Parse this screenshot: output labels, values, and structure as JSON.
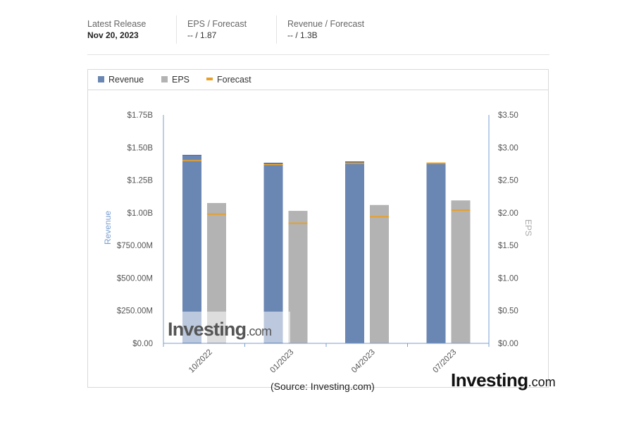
{
  "summary": {
    "latest_release_label": "Latest Release",
    "latest_release_value": "Nov 20, 2023",
    "eps_label": "EPS / Forecast",
    "eps_value": "-- / 1.87",
    "revenue_label": "Revenue / Forecast",
    "revenue_value": "-- / 1.3B"
  },
  "legend": {
    "revenue": "Revenue",
    "eps": "EPS",
    "forecast": "Forecast"
  },
  "colors": {
    "revenue": "#6a86b3",
    "eps": "#b3b3b3",
    "forecast": "#e8a02a",
    "axis": "#7a9fd0"
  },
  "chart_data": {
    "type": "bar",
    "categories": [
      "10/2022",
      "01/2023",
      "04/2023",
      "07/2023"
    ],
    "series": [
      {
        "name": "Revenue",
        "axis": "left",
        "unit": "B",
        "values": [
          1.44,
          1.38,
          1.39,
          1.38
        ]
      },
      {
        "name": "EPS",
        "axis": "right",
        "unit": "$",
        "values": [
          2.15,
          2.03,
          2.12,
          2.19
        ]
      },
      {
        "name": "Forecast",
        "axis": "both",
        "revenue_values": [
          1.4,
          1.37,
          1.38,
          1.38
        ],
        "eps_values": [
          1.98,
          1.84,
          1.94,
          2.04
        ]
      }
    ],
    "ylabel_left": "Revenue",
    "ylabel_right": "EPS",
    "ylim_left": [
      0,
      1.75
    ],
    "ylim_right": [
      0,
      3.5
    ],
    "yticks_left": [
      "$0.00",
      "$250.00M",
      "$500.00M",
      "$750.00M",
      "$1.00B",
      "$1.25B",
      "$1.50B",
      "$1.75B"
    ],
    "yticks_right": [
      "$0.00",
      "$0.50",
      "$1.00",
      "$1.50",
      "$2.00",
      "$2.50",
      "$3.00",
      "$3.50"
    ],
    "grid": false,
    "legend_position": "top-left"
  },
  "watermark": {
    "brand": "Investing",
    "suffix": ".com"
  },
  "footer": {
    "source": "(Source: Investing.com)",
    "brand": "Investing",
    "brand_suffix": ".com"
  }
}
